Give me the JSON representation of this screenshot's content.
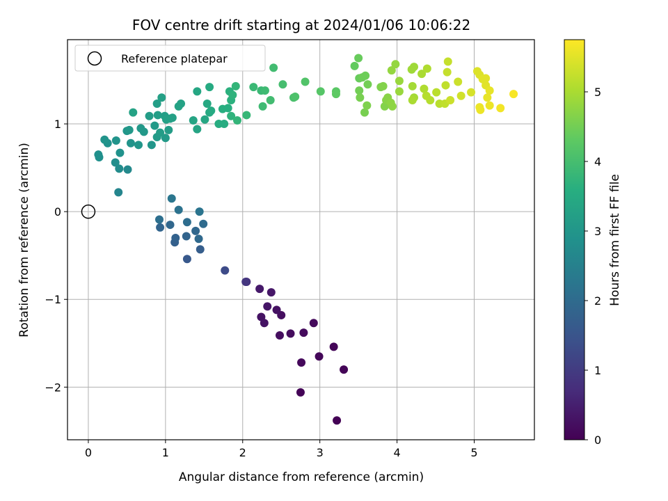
{
  "chart_data": {
    "type": "scatter",
    "title": "FOV centre drift starting at 2024/01/06 10:06:22",
    "xlabel": "Angular distance from reference (arcmin)",
    "ylabel": "Rotation from reference (arcmin)",
    "xlim": [
      -0.27,
      5.78
    ],
    "ylim": [
      -2.6,
      1.96
    ],
    "xticks": [
      0,
      1,
      2,
      3,
      4,
      5
    ],
    "yticks": [
      -2,
      -1,
      0,
      1
    ],
    "grid": true,
    "legend": {
      "position": "upper-left",
      "entries": [
        "Reference platepar"
      ]
    },
    "reference_point": {
      "x": 0,
      "y": 0
    },
    "colorbar": {
      "label": "Hours from first FF file",
      "colormap": "viridis",
      "range": [
        0,
        5.75
      ],
      "ticks": [
        0,
        1,
        2,
        3,
        4,
        5
      ]
    },
    "points": [
      [
        3.22,
        -2.38,
        0.02
      ],
      [
        2.75,
        -2.06,
        0.05
      ],
      [
        3.31,
        -1.8,
        0.06
      ],
      [
        3.18,
        -1.54,
        0.08
      ],
      [
        2.99,
        -1.65,
        0.1
      ],
      [
        2.76,
        -1.72,
        0.12
      ],
      [
        2.92,
        -1.27,
        0.14
      ],
      [
        2.79,
        -1.38,
        0.16
      ],
      [
        2.62,
        -1.39,
        0.19
      ],
      [
        2.48,
        -1.41,
        0.21
      ],
      [
        2.5,
        -1.18,
        0.23
      ],
      [
        2.44,
        -1.12,
        0.26
      ],
      [
        2.24,
        -1.2,
        0.28
      ],
      [
        2.28,
        -1.27,
        0.3
      ],
      [
        2.32,
        -1.08,
        0.33
      ],
      [
        2.37,
        -0.92,
        0.36
      ],
      [
        2.22,
        -0.88,
        0.4
      ],
      [
        2.05,
        -0.8,
        0.7
      ],
      [
        2.04,
        -0.8,
        0.9
      ],
      [
        1.77,
        -0.67,
        1.3
      ],
      [
        1.28,
        -0.54,
        1.6
      ],
      [
        1.45,
        -0.43,
        1.7
      ],
      [
        1.12,
        -0.35,
        1.75
      ],
      [
        1.13,
        -0.3,
        1.8
      ],
      [
        0.93,
        -0.18,
        1.85
      ],
      [
        1.06,
        -0.15,
        1.9
      ],
      [
        1.27,
        -0.28,
        1.85
      ],
      [
        1.39,
        -0.22,
        1.9
      ],
      [
        1.43,
        -0.31,
        1.95
      ],
      [
        1.49,
        -0.14,
        2.0
      ],
      [
        1.28,
        -0.12,
        2.05
      ],
      [
        0.92,
        -0.09,
        2.1
      ],
      [
        1.17,
        0.02,
        2.15
      ],
      [
        1.44,
        0.0,
        2.2
      ],
      [
        1.08,
        0.15,
        2.25
      ],
      [
        0.39,
        0.22,
        2.6
      ],
      [
        0.51,
        0.48,
        2.7
      ],
      [
        0.4,
        0.49,
        2.75
      ],
      [
        0.35,
        0.56,
        2.8
      ],
      [
        0.14,
        0.62,
        2.85
      ],
      [
        0.13,
        0.65,
        2.85
      ],
      [
        0.41,
        0.67,
        2.9
      ],
      [
        0.25,
        0.78,
        2.9
      ],
      [
        0.36,
        0.81,
        2.95
      ],
      [
        0.21,
        0.82,
        2.95
      ],
      [
        0.55,
        0.78,
        2.95
      ],
      [
        0.65,
        0.76,
        3.0
      ],
      [
        0.82,
        0.76,
        3.0
      ],
      [
        0.5,
        0.92,
        3.0
      ],
      [
        0.53,
        0.93,
        3.05
      ],
      [
        0.72,
        0.91,
        3.05
      ],
      [
        0.68,
        0.95,
        3.05
      ],
      [
        0.86,
        0.98,
        3.1
      ],
      [
        0.89,
        0.85,
        3.1
      ],
      [
        1.0,
        0.84,
        3.1
      ],
      [
        0.93,
        0.9,
        3.15
      ],
      [
        1.04,
        0.93,
        3.15
      ],
      [
        0.79,
        1.09,
        3.15
      ],
      [
        0.9,
        1.1,
        3.2
      ],
      [
        0.99,
        1.09,
        3.2
      ],
      [
        1.06,
        1.06,
        3.2
      ],
      [
        0.89,
        1.23,
        3.2
      ],
      [
        0.95,
        1.3,
        3.25
      ],
      [
        1.01,
        1.05,
        3.25
      ],
      [
        1.09,
        1.07,
        3.25
      ],
      [
        1.17,
        1.2,
        3.3
      ],
      [
        1.2,
        1.23,
        3.3
      ],
      [
        0.58,
        1.13,
        3.3
      ],
      [
        1.36,
        1.04,
        3.35
      ],
      [
        1.41,
        0.94,
        3.35
      ],
      [
        1.41,
        1.37,
        3.4
      ],
      [
        1.51,
        1.05,
        3.4
      ],
      [
        1.54,
        1.23,
        3.45
      ],
      [
        1.57,
        1.13,
        3.45
      ],
      [
        1.59,
        1.15,
        3.5
      ],
      [
        1.57,
        1.42,
        3.5
      ],
      [
        1.69,
        1.0,
        3.55
      ],
      [
        1.76,
        1.0,
        3.55
      ],
      [
        1.74,
        1.17,
        3.6
      ],
      [
        1.81,
        1.18,
        3.6
      ],
      [
        1.83,
        1.37,
        3.65
      ],
      [
        1.85,
        1.27,
        3.65
      ],
      [
        1.85,
        1.09,
        3.7
      ],
      [
        1.87,
        1.33,
        3.7
      ],
      [
        1.91,
        1.43,
        3.75
      ],
      [
        1.93,
        1.04,
        3.75
      ],
      [
        2.05,
        1.1,
        3.8
      ],
      [
        2.14,
        1.42,
        3.85
      ],
      [
        2.24,
        1.38,
        3.85
      ],
      [
        2.29,
        1.38,
        3.9
      ],
      [
        2.26,
        1.2,
        3.9
      ],
      [
        2.36,
        1.27,
        3.95
      ],
      [
        2.4,
        1.64,
        3.95
      ],
      [
        2.52,
        1.45,
        4.0
      ],
      [
        2.66,
        1.3,
        4.05
      ],
      [
        2.68,
        1.31,
        4.1
      ],
      [
        2.81,
        1.48,
        4.15
      ],
      [
        3.01,
        1.37,
        4.2
      ],
      [
        3.21,
        1.37,
        4.25
      ],
      [
        3.21,
        1.34,
        4.3
      ],
      [
        3.45,
        1.66,
        4.35
      ],
      [
        3.5,
        1.75,
        4.4
      ],
      [
        3.51,
        1.52,
        4.4
      ],
      [
        3.55,
        1.53,
        4.45
      ],
      [
        3.59,
        1.55,
        4.45
      ],
      [
        3.62,
        1.45,
        4.5
      ],
      [
        3.51,
        1.38,
        4.5
      ],
      [
        3.52,
        1.3,
        4.55
      ],
      [
        3.58,
        1.13,
        4.55
      ],
      [
        3.61,
        1.21,
        4.6
      ],
      [
        3.79,
        1.42,
        4.6
      ],
      [
        3.82,
        1.43,
        4.65
      ],
      [
        3.84,
        1.2,
        4.65
      ],
      [
        3.86,
        1.27,
        4.7
      ],
      [
        3.88,
        1.3,
        4.7
      ],
      [
        3.92,
        1.24,
        4.75
      ],
      [
        3.94,
        1.2,
        4.75
      ],
      [
        3.93,
        1.61,
        4.8
      ],
      [
        3.98,
        1.68,
        4.8
      ],
      [
        4.03,
        1.49,
        4.85
      ],
      [
        4.03,
        1.37,
        4.85
      ],
      [
        4.19,
        1.62,
        4.9
      ],
      [
        4.22,
        1.65,
        4.9
      ],
      [
        4.2,
        1.43,
        4.95
      ],
      [
        4.22,
        1.3,
        4.95
      ],
      [
        4.2,
        1.27,
        5.0
      ],
      [
        4.32,
        1.57,
        5.0
      ],
      [
        4.39,
        1.63,
        5.05
      ],
      [
        4.35,
        1.4,
        5.05
      ],
      [
        4.38,
        1.32,
        5.1
      ],
      [
        4.43,
        1.27,
        5.1
      ],
      [
        4.51,
        1.36,
        5.15
      ],
      [
        4.55,
        1.23,
        5.15
      ],
      [
        4.62,
        1.23,
        5.2
      ],
      [
        4.63,
        1.44,
        5.2
      ],
      [
        4.65,
        1.59,
        5.25
      ],
      [
        4.66,
        1.71,
        5.25
      ],
      [
        4.69,
        1.27,
        5.3
      ],
      [
        4.79,
        1.48,
        5.3
      ],
      [
        4.83,
        1.32,
        5.35
      ],
      [
        4.96,
        1.36,
        5.4
      ],
      [
        5.04,
        1.6,
        5.45
      ],
      [
        5.07,
        1.56,
        5.45
      ],
      [
        5.11,
        1.51,
        5.5
      ],
      [
        5.15,
        1.52,
        5.5
      ],
      [
        5.15,
        1.44,
        5.5
      ],
      [
        5.2,
        1.38,
        5.55
      ],
      [
        5.17,
        1.3,
        5.55
      ],
      [
        5.2,
        1.21,
        5.6
      ],
      [
        5.07,
        1.19,
        5.6
      ],
      [
        5.08,
        1.16,
        5.6
      ],
      [
        5.34,
        1.18,
        5.65
      ],
      [
        5.51,
        1.34,
        5.7
      ]
    ]
  }
}
